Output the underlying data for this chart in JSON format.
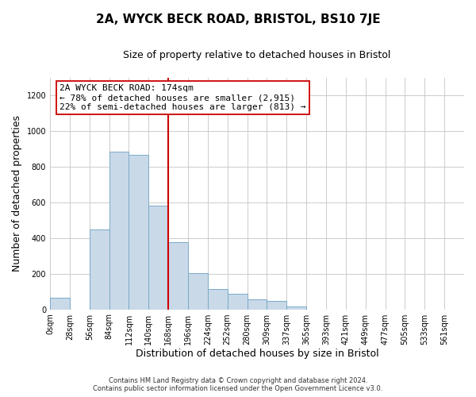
{
  "title": "2A, WYCK BECK ROAD, BRISTOL, BS10 7JE",
  "subtitle": "Size of property relative to detached houses in Bristol",
  "xlabel": "Distribution of detached houses by size in Bristol",
  "ylabel": "Number of detached properties",
  "footer_line1": "Contains HM Land Registry data © Crown copyright and database right 2024.",
  "footer_line2": "Contains public sector information licensed under the Open Government Licence v3.0.",
  "bar_labels": [
    "0sqm",
    "28sqm",
    "56sqm",
    "84sqm",
    "112sqm",
    "140sqm",
    "168sqm",
    "196sqm",
    "224sqm",
    "252sqm",
    "280sqm",
    "309sqm",
    "337sqm",
    "365sqm",
    "393sqm",
    "421sqm",
    "449sqm",
    "477sqm",
    "505sqm",
    "533sqm",
    "561sqm"
  ],
  "bar_values": [
    65,
    0,
    447,
    882,
    868,
    580,
    375,
    205,
    115,
    88,
    55,
    45,
    18,
    0,
    0,
    0,
    0,
    0,
    0,
    0,
    0
  ],
  "bar_color": "#c9d9e8",
  "bar_edge_color": "#7aaac8",
  "vline_x": 6,
  "vline_color": "#cc0000",
  "annotation_text": "2A WYCK BECK ROAD: 174sqm\n← 78% of detached houses are smaller (2,915)\n22% of semi-detached houses are larger (813) →",
  "annotation_box_color": "#ffffff",
  "annotation_box_edge": "#cc0000",
  "ylim": [
    0,
    1300
  ],
  "yticks": [
    0,
    200,
    400,
    600,
    800,
    1000,
    1200
  ],
  "grid_color": "#cccccc",
  "bg_color": "#ffffff",
  "plot_bg_color": "#ffffff",
  "title_fontsize": 11,
  "subtitle_fontsize": 9,
  "axis_label_fontsize": 9,
  "tick_fontsize": 7,
  "annotation_fontsize": 8
}
